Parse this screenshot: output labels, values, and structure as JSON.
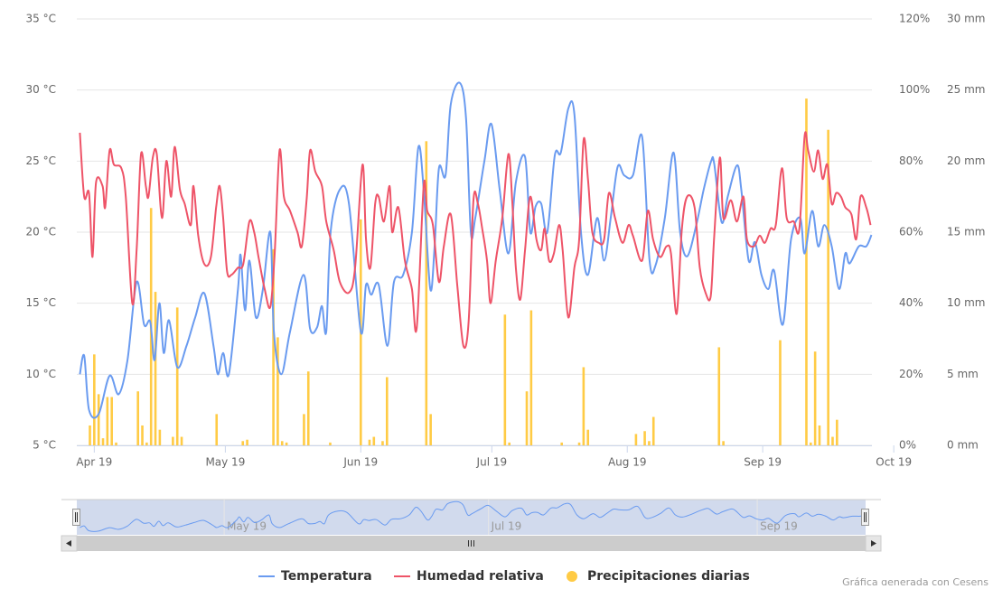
{
  "chart_data": {
    "type": "line",
    "xlim": [
      -4,
      178
    ],
    "xticks": [
      {
        "value": 0,
        "label": "Apr 19"
      },
      {
        "value": 30,
        "label": "May 19"
      },
      {
        "value": 61,
        "label": "Jun 19"
      },
      {
        "value": 91,
        "label": "Jul 19"
      },
      {
        "value": 122,
        "label": "Aug 19"
      },
      {
        "value": 153,
        "label": "Sep 19"
      },
      {
        "value": 183,
        "label": "Oct 19"
      }
    ],
    "ylim": [
      5,
      35
    ],
    "yticks": [
      {
        "value": 5,
        "label": "5 °C"
      },
      {
        "value": 10,
        "label": "10 °C"
      },
      {
        "value": 15,
        "label": "15 °C"
      },
      {
        "value": 20,
        "label": "20 °C"
      },
      {
        "value": 25,
        "label": "25 °C"
      },
      {
        "value": 30,
        "label": "30 °C"
      },
      {
        "value": 35,
        "label": "35 °C"
      }
    ],
    "y2lim": [
      0,
      120
    ],
    "y2ticks": [
      {
        "value": 0,
        "label": "0%"
      },
      {
        "value": 20,
        "label": "20%"
      },
      {
        "value": 40,
        "label": "40%"
      },
      {
        "value": 60,
        "label": "60%"
      },
      {
        "value": 80,
        "label": "80%"
      },
      {
        "value": 100,
        "label": "100%"
      },
      {
        "value": 120,
        "label": "120%"
      }
    ],
    "y3lim": [
      0,
      30
    ],
    "y3ticks": [
      {
        "value": 0,
        "label": "0 mm"
      },
      {
        "value": 5,
        "label": "5 mm"
      },
      {
        "value": 10,
        "label": "10 mm"
      },
      {
        "value": 15,
        "label": "15 mm"
      },
      {
        "value": 20,
        "label": "20 mm"
      },
      {
        "value": 25,
        "label": "25 mm"
      },
      {
        "value": 30,
        "label": "30 mm"
      }
    ],
    "grid": true,
    "legend": "bottom",
    "series": [
      {
        "name": "Temperatura",
        "type": "line",
        "color": "#6a9bf0",
        "x": [
          -3.3,
          -2.3,
          -1.2,
          1.0,
          3.5,
          5.6,
          7.6,
          9.7,
          11.4,
          12.8,
          13.8,
          14.9,
          15.9,
          17.1,
          19.0,
          21.1,
          23.1,
          25.2,
          27.3,
          28.3,
          29.5,
          30.8,
          32.9,
          33.5,
          34.5,
          35.5,
          37.0,
          38.6,
          40.3,
          41.1,
          42.8,
          44.8,
          47.9,
          49.4,
          51.0,
          52.1,
          53.1,
          54.1,
          56.2,
          58.3,
          61.0,
          62.2,
          63.4,
          65.1,
          67.1,
          68.6,
          70.7,
          72.7,
          74.2,
          75.4,
          76.9,
          77.9,
          78.9,
          80.4,
          81.6,
          83.7,
          85.1,
          86.2,
          87.2,
          89.3,
          90.9,
          92.8,
          94.8,
          96.5,
          98.6,
          99.8,
          101.0,
          102.3,
          103.7,
          105.4,
          106.8,
          108.5,
          109.9,
          111.4,
          113.0,
          115.1,
          116.7,
          118.2,
          119.8,
          121.3,
          123.3,
          125.4,
          127.1,
          128.5,
          130.6,
          132.6,
          134.1,
          135.7,
          137.8,
          139.5,
          141.2,
          141.9,
          143.6,
          145.0,
          147.1,
          148.1,
          149.8,
          151.2,
          152.7,
          154.3,
          155.6,
          157.6,
          159.5,
          161.6,
          162.6,
          164.3,
          165.7,
          167.1,
          168.8,
          170.5,
          171.9,
          172.9,
          175.0,
          176.7,
          177.9
        ],
        "values": [
          10,
          11.3,
          7.5,
          7.2,
          9.9,
          8.6,
          11,
          16.5,
          13.5,
          13.7,
          11,
          15,
          11.5,
          13.8,
          10.5,
          12,
          14,
          15.7,
          12,
          10,
          11.5,
          10,
          16,
          18.4,
          14.5,
          18,
          14,
          16,
          20,
          13,
          10,
          13,
          17,
          13.2,
          13.3,
          14.8,
          13,
          20,
          23,
          22,
          13,
          16.3,
          15.6,
          16.3,
          12,
          16.5,
          17,
          20,
          26,
          23,
          16,
          19,
          24.5,
          24,
          29,
          30.5,
          28,
          20,
          21,
          25,
          27.6,
          23,
          18.5,
          23.5,
          25.3,
          20,
          21.8,
          22,
          20,
          25.4,
          25.6,
          28.7,
          28.3,
          20,
          17,
          21,
          18,
          21,
          24.6,
          24,
          24,
          26.7,
          18,
          17.7,
          21,
          25.6,
          20,
          18.3,
          20.5,
          23,
          25,
          24.8,
          20.7,
          22.5,
          24.7,
          23,
          18,
          19.3,
          17,
          16,
          17.3,
          13.5,
          19.5,
          21,
          18.5,
          21.5,
          19,
          20.5,
          19,
          16,
          18.5,
          17.8,
          19,
          19,
          19.8
        ]
      },
      {
        "name": "Humedad relativa",
        "type": "line",
        "axis": "y2",
        "color": "#ee5468",
        "x": [
          -3.3,
          -2.3,
          -1.2,
          -0.4,
          0.4,
          1.9,
          2.5,
          3.5,
          4.5,
          6.2,
          7.2,
          8.7,
          9.7,
          10.7,
          11.8,
          12.4,
          13.4,
          14.3,
          15.5,
          16.5,
          17.6,
          18.4,
          19.6,
          20.7,
          22.1,
          22.7,
          23.8,
          25.2,
          26.7,
          27.9,
          28.7,
          29.5,
          30.4,
          31.4,
          32.9,
          34.1,
          35.5,
          36.6,
          37.6,
          39.0,
          40.3,
          41.3,
          42.4,
          43.4,
          44.8,
          46.5,
          47.5,
          48.6,
          49.4,
          50.6,
          52.1,
          53.1,
          54.8,
          56.2,
          58.3,
          59.7,
          61.4,
          62.2,
          63.2,
          64.3,
          65.1,
          66.3,
          67.6,
          68.2,
          69.6,
          71.1,
          72.7,
          73.8,
          75.4,
          76.2,
          77.5,
          78.9,
          80.0,
          81.6,
          83.1,
          84.5,
          85.7,
          86.8,
          87.8,
          88.8,
          89.9,
          90.7,
          91.9,
          93.4,
          94.8,
          95.7,
          96.5,
          97.5,
          98.6,
          99.8,
          101.2,
          102.3,
          103.1,
          104.1,
          105.2,
          106.4,
          107.2,
          108.5,
          109.9,
          111.0,
          112.0,
          113.0,
          114.0,
          115.5,
          116.7,
          117.8,
          119.2,
          120.9,
          122.3,
          123.3,
          125.4,
          126.7,
          127.9,
          129.5,
          131.0,
          132.0,
          133.3,
          134.5,
          135.7,
          137.4,
          138.6,
          139.9,
          141.1,
          141.9,
          143.2,
          144.0,
          145.7,
          147.1,
          148.6,
          149.4,
          151.0,
          152.3,
          153.5,
          154.8,
          156.0,
          157.4,
          158.5,
          160.1,
          161.4,
          162.6,
          163.4,
          164.7,
          165.7,
          166.7,
          167.8,
          168.8,
          169.8,
          170.9,
          171.9,
          173.3,
          174.4,
          175.4,
          176.7,
          177.7
        ],
        "values": [
          88,
          70,
          71,
          53,
          74,
          73,
          67,
          83,
          79,
          78,
          70,
          40,
          55,
          82,
          73,
          70,
          81,
          82,
          64,
          80,
          70,
          84,
          72,
          68,
          62,
          73,
          59,
          51,
          53,
          67,
          73,
          64,
          49,
          48,
          50,
          51,
          63,
          60,
          53,
          44,
          39,
          54,
          83,
          70,
          66,
          60,
          56,
          69,
          83,
          77,
          73,
          63,
          55,
          46,
          43,
          50,
          79,
          58,
          50,
          68,
          70,
          63,
          73,
          60,
          67,
          52,
          44,
          33,
          73,
          66,
          62,
          46,
          56,
          65,
          45,
          28,
          35,
          69,
          68,
          61,
          52,
          40,
          52,
          64,
          82,
          68,
          50,
          41,
          55,
          70,
          58,
          55,
          61,
          52,
          54,
          62,
          55,
          36,
          50,
          58,
          86,
          75,
          60,
          57,
          58,
          71,
          64,
          57,
          62,
          59,
          52,
          66,
          58,
          53,
          56,
          54,
          37,
          61,
          70,
          67,
          50,
          43,
          42,
          59,
          81,
          64,
          69,
          63,
          70,
          58,
          56,
          59,
          57,
          61,
          62,
          78,
          64,
          63,
          61,
          87,
          83,
          77,
          83,
          75,
          79,
          68,
          71,
          70,
          67,
          65,
          58,
          70,
          67,
          62
        ]
      },
      {
        "name": "Precipitaciones diarias",
        "type": "bar",
        "axis": "y3",
        "color": "#ffcb45",
        "x": [
          -1,
          0,
          1,
          2,
          3,
          4,
          5,
          10,
          11,
          12,
          13,
          14,
          15,
          18,
          19,
          20,
          28,
          34,
          35,
          41,
          42,
          43,
          44,
          48,
          49,
          54,
          61,
          63,
          64,
          66,
          67,
          76,
          77,
          94,
          95,
          99,
          100,
          107,
          111,
          112,
          113,
          124,
          126,
          127,
          128,
          143,
          144,
          157,
          163,
          164,
          165,
          166,
          168,
          169,
          170
        ],
        "values": [
          1.4,
          6.4,
          3.6,
          0.5,
          3.4,
          3.4,
          0.2,
          3.8,
          1.4,
          0.2,
          16.7,
          10.8,
          1.1,
          0.6,
          9.7,
          0.6,
          2.2,
          0.3,
          0.4,
          13.8,
          7.6,
          0.3,
          0.2,
          2.2,
          5.2,
          0.2,
          15.9,
          0.4,
          0.6,
          0.3,
          4.8,
          21.4,
          2.2,
          9.2,
          0.2,
          3.8,
          9.5,
          0.2,
          0.2,
          5.5,
          1.1,
          0.8,
          1.0,
          0.3,
          2.0,
          6.9,
          0.3,
          7.4,
          24.4,
          0.2,
          6.6,
          1.4,
          22.2,
          0.6,
          1.8
        ]
      }
    ],
    "navigator": {
      "xticks": [
        {
          "value": 30,
          "label": "May 19"
        },
        {
          "value": 91,
          "label": "Jul 19"
        },
        {
          "value": 153,
          "label": "Sep 19"
        }
      ]
    },
    "credits": "Gráfica generada con Cesens"
  }
}
